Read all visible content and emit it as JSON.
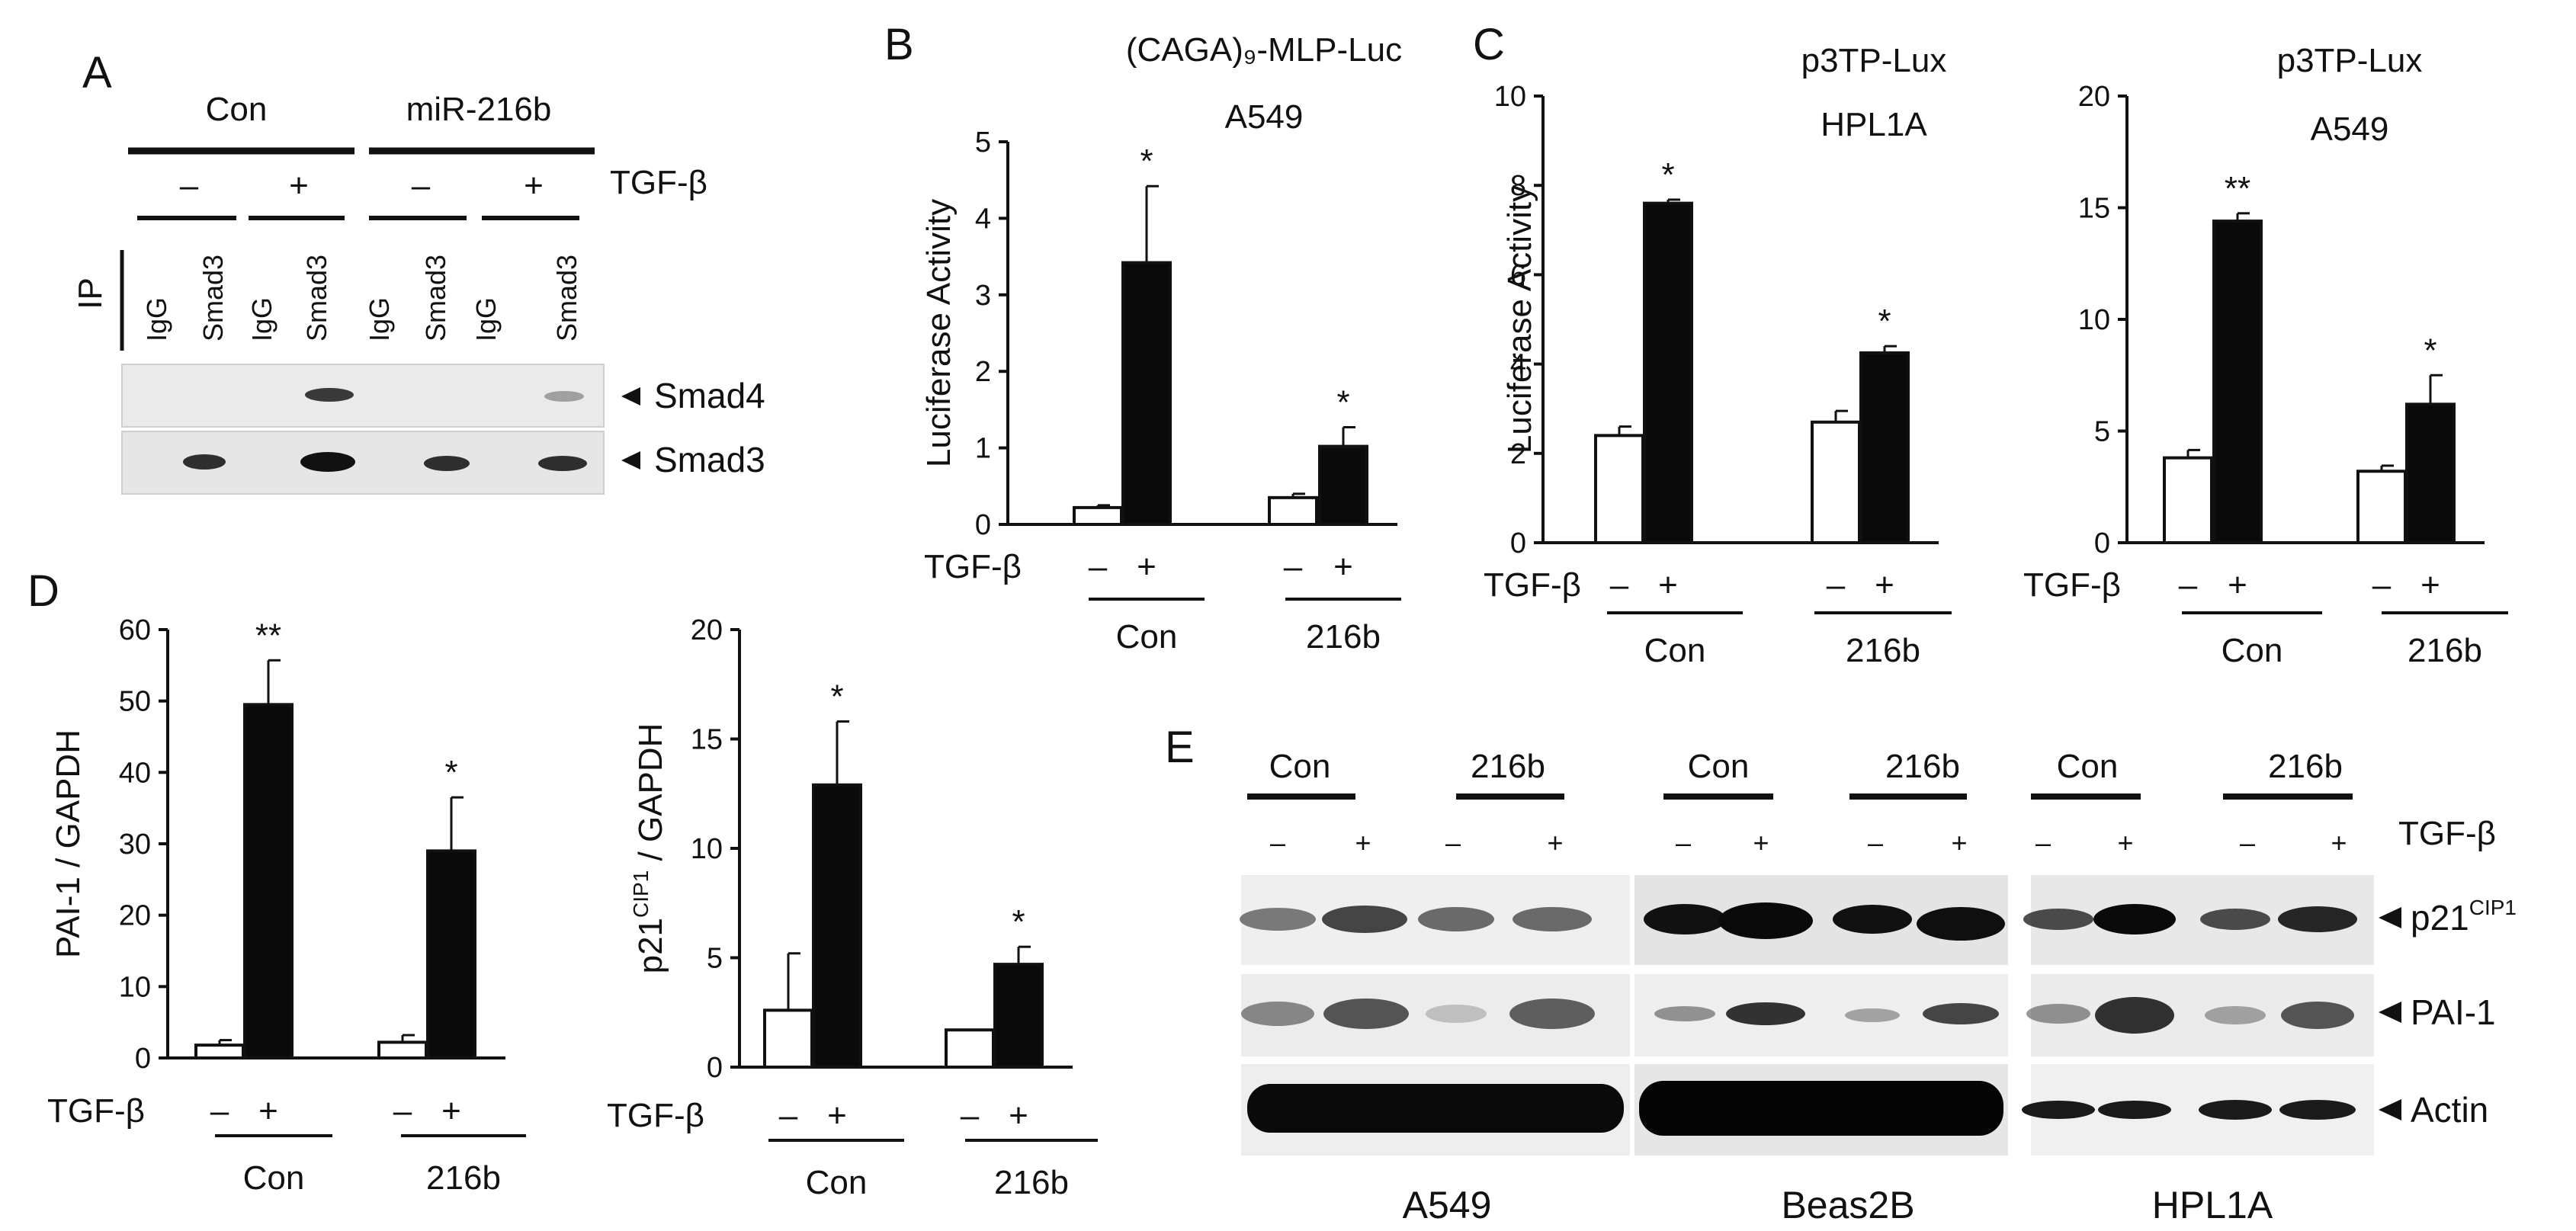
{
  "colors": {
    "control_bar": "#ffffff",
    "treated_bar": "#0a0a0a",
    "axis": "#111111",
    "blot_bg": "#e6e6e6"
  },
  "panelA": {
    "letter": "A",
    "groups": [
      "Con",
      "miR-216b"
    ],
    "treatment_label": "TGF-β",
    "treatment_signs": [
      "–",
      "+",
      "–",
      "+"
    ],
    "ip_label": "IP",
    "lanes": [
      "IgG",
      "Smad3",
      "IgG",
      "Smad3",
      "IgG",
      "Smad3",
      "IgG",
      "Smad3"
    ],
    "bands": [
      "Smad4",
      "Smad3"
    ]
  },
  "panelE": {
    "letter": "E",
    "treatment_label": "TGF-β",
    "cell_lines": [
      {
        "name": "A549",
        "groups": [
          "Con",
          "216b"
        ],
        "signs": [
          "–",
          "+",
          "–",
          "+"
        ]
      },
      {
        "name": "Beas2B",
        "groups": [
          "Con",
          "216b"
        ],
        "signs": [
          "–",
          "+",
          "–",
          "+"
        ]
      },
      {
        "name": "HPL1A",
        "groups": [
          "Con",
          "216b"
        ],
        "signs": [
          "–",
          "+",
          "–",
          "+"
        ]
      }
    ],
    "bands": [
      {
        "name": "p21",
        "sup": "CIP1"
      },
      {
        "name": "PAI-1",
        "sup": ""
      },
      {
        "name": "Actin",
        "sup": ""
      }
    ]
  },
  "chart_data": [
    {
      "panel": "B",
      "type": "bar",
      "title": "(CAGA)₉-MLP-Luc",
      "subtitle": "A549",
      "ylabel": "Luciferase Activity",
      "ylim": [
        0,
        5
      ],
      "yticks": [
        0,
        1,
        2,
        3,
        4,
        5
      ],
      "groups": [
        "Con",
        "216b"
      ],
      "treatment_label": "TGF-β",
      "treatment_signs": [
        "–",
        "+"
      ],
      "series": [
        {
          "name": "–",
          "values": [
            0.22,
            0.35
          ],
          "errors": [
            0.03,
            0.05
          ]
        },
        {
          "name": "+",
          "values": [
            3.42,
            1.02
          ],
          "errors": [
            1.0,
            0.25
          ]
        }
      ],
      "significance": [
        "*",
        "*"
      ]
    },
    {
      "panel": "C",
      "type": "bar",
      "title": "p3TP-Lux",
      "subtitle": "HPL1A",
      "ylabel": "Luciferase Activity",
      "ylim": [
        0,
        10
      ],
      "yticks": [
        0,
        2,
        4,
        6,
        8,
        10
      ],
      "groups": [
        "Con",
        "216b"
      ],
      "treatment_label": "TGF-β",
      "treatment_signs": [
        "–",
        "+"
      ],
      "series": [
        {
          "name": "–",
          "values": [
            2.4,
            2.7
          ],
          "errors": [
            0.2,
            0.25
          ]
        },
        {
          "name": "+",
          "values": [
            7.6,
            4.25
          ],
          "errors": [
            0.08,
            0.15
          ]
        }
      ],
      "significance": [
        "*",
        "*"
      ]
    },
    {
      "panel": "C2",
      "type": "bar",
      "title": "p3TP-Lux",
      "subtitle": "A549",
      "ylabel": "",
      "ylim": [
        0,
        20
      ],
      "yticks": [
        0,
        5,
        10,
        15,
        20
      ],
      "groups": [
        "Con",
        "216b"
      ],
      "treatment_label": "TGF-β",
      "treatment_signs": [
        "–",
        "+"
      ],
      "series": [
        {
          "name": "–",
          "values": [
            3.8,
            3.2
          ],
          "errors": [
            0.35,
            0.25
          ]
        },
        {
          "name": "+",
          "values": [
            14.4,
            6.2
          ],
          "errors": [
            0.35,
            1.3
          ]
        }
      ],
      "significance": [
        "**",
        "*"
      ]
    },
    {
      "panel": "D",
      "type": "bar",
      "title": "",
      "subtitle": "",
      "ylabel": "PAI-1 / GAPDH",
      "ylim": [
        0,
        60
      ],
      "yticks": [
        0,
        10,
        20,
        30,
        40,
        50,
        60
      ],
      "groups": [
        "Con",
        "216b"
      ],
      "treatment_label": "TGF-β",
      "treatment_signs": [
        "–",
        "+"
      ],
      "series": [
        {
          "name": "–",
          "values": [
            1.8,
            2.2
          ],
          "errors": [
            0.7,
            1.0
          ]
        },
        {
          "name": "+",
          "values": [
            49.5,
            29.0
          ],
          "errors": [
            6.2,
            7.5
          ]
        }
      ],
      "significance": [
        "**",
        "*"
      ]
    },
    {
      "panel": "D2",
      "type": "bar",
      "title": "",
      "subtitle": "",
      "ylabel": "p21",
      "ylabel_sup": "CIP1",
      "ylabel_rest": " / GAPDH",
      "ylim": [
        0,
        20
      ],
      "yticks": [
        0,
        5,
        10,
        15,
        20
      ],
      "groups": [
        "Con",
        "216b"
      ],
      "treatment_label": "TGF-β",
      "treatment_signs": [
        "–",
        "+"
      ],
      "series": [
        {
          "name": "–",
          "values": [
            2.6,
            1.7
          ],
          "errors": [
            2.6,
            0.0
          ]
        },
        {
          "name": "+",
          "values": [
            12.9,
            4.7
          ],
          "errors": [
            2.9,
            0.8
          ]
        }
      ],
      "significance": [
        "*",
        "*"
      ]
    }
  ]
}
